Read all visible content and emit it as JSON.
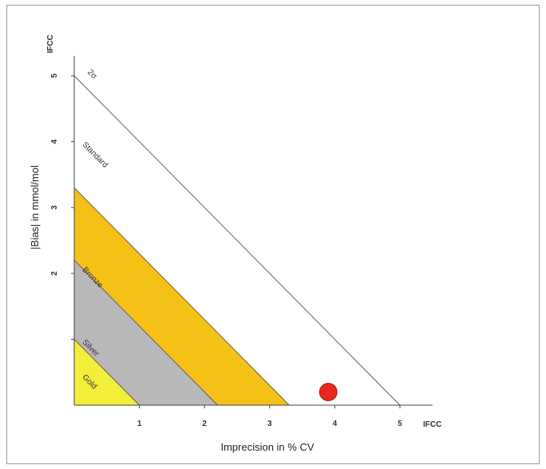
{
  "chart_data": {
    "type": "scatter",
    "title": "",
    "xlabel": "Imprecision in % CV",
    "ylabel": "|Bias| in mmol/mol",
    "x_unit_label": "IFCC",
    "y_unit_label": "IFCC",
    "xlim": [
      0,
      5.5
    ],
    "ylim": [
      0,
      5.3
    ],
    "x_ticks": [
      "1",
      "2",
      "3",
      "4",
      "5"
    ],
    "y_ticks": [
      "1",
      "2",
      "3",
      "4",
      "5"
    ],
    "y_tick_labels_shown": [
      "2",
      "3",
      "4",
      "5"
    ],
    "grid": false,
    "zones": [
      {
        "name": "Gold",
        "intercept": 1.0,
        "color": "#f2ee3a"
      },
      {
        "name": "Silver",
        "intercept": 2.2,
        "color": "#b8b8b8"
      },
      {
        "name": "Bronze",
        "intercept": 3.3,
        "color": "#f5c116"
      },
      {
        "name": "Standard",
        "intercept": 5.0,
        "color": "#ffffff"
      }
    ],
    "limit_line_label": "2σ",
    "points": [
      {
        "x": 3.9,
        "y": 0.2,
        "color": "#e8281c"
      }
    ]
  }
}
